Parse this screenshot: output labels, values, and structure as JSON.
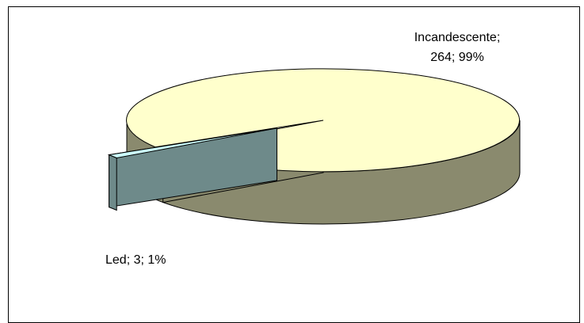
{
  "chart_data": {
    "type": "pie",
    "style": "3d-exploded",
    "title": "",
    "slices": [
      {
        "name": "Incandescente",
        "value": 264,
        "percent": "99%",
        "label_line1": "Incandescente;",
        "label_line2": "264; 99%"
      },
      {
        "name": "Led",
        "value": 3,
        "percent": "1%",
        "label_line1": "Led; 3; 1%"
      }
    ],
    "legend": "none",
    "colors": {
      "incandescente_top": "#FFFFCC",
      "incandescente_side": "#8A8A6E",
      "led_top": "#CCFFFF",
      "led_side": "#6E8A8A",
      "outline": "#000000"
    }
  }
}
